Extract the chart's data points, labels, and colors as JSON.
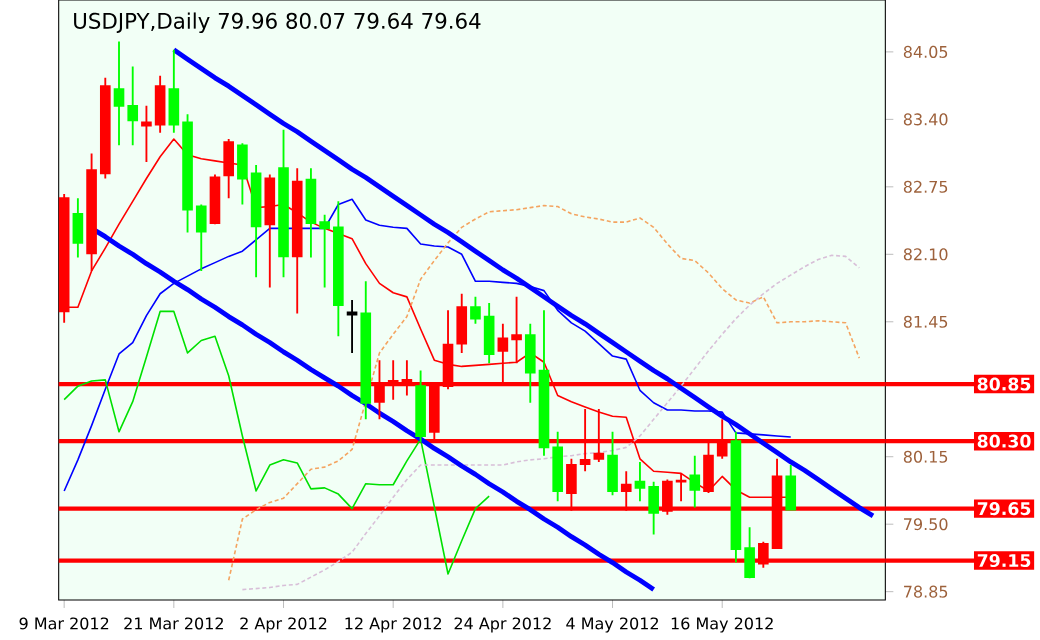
{
  "chart_data": {
    "type": "candlestick",
    "title": "USDJPY,Daily 79.96 80.07 79.64 79.64",
    "categories": [
      "9 Mar 2012",
      null,
      null,
      null,
      null,
      null,
      null,
      null,
      "21 Mar 2012",
      null,
      null,
      null,
      null,
      null,
      null,
      null,
      "2 Apr 2012",
      null,
      null,
      null,
      null,
      null,
      null,
      null,
      "12 Apr 2012",
      null,
      null,
      null,
      null,
      null,
      null,
      null,
      "24 Apr 2012",
      null,
      null,
      null,
      null,
      null,
      null,
      null,
      "4 May 2012",
      null,
      null,
      null,
      null,
      null,
      null,
      null,
      "16 May 2012",
      null,
      null,
      null,
      null,
      null,
      null,
      null,
      null,
      null,
      null,
      null
    ],
    "ohlc": [
      [
        81.55,
        82.68,
        81.44,
        82.64
      ],
      [
        82.49,
        82.64,
        82.07,
        82.21
      ],
      [
        82.11,
        83.07,
        81.94,
        82.91
      ],
      [
        82.88,
        83.8,
        82.83,
        83.72
      ],
      [
        83.69,
        84.15,
        83.15,
        83.53
      ],
      [
        83.53,
        83.91,
        83.15,
        83.39
      ],
      [
        83.34,
        83.53,
        82.99,
        83.37
      ],
      [
        83.35,
        83.82,
        83.27,
        83.72
      ],
      [
        83.69,
        84.07,
        83.27,
        83.35
      ],
      [
        83.37,
        83.45,
        82.31,
        82.53
      ],
      [
        82.56,
        82.58,
        81.94,
        82.32
      ],
      [
        82.4,
        82.87,
        82.39,
        82.84
      ],
      [
        82.86,
        83.21,
        82.64,
        83.18
      ],
      [
        83.15,
        83.17,
        82.58,
        82.83
      ],
      [
        82.88,
        82.96,
        81.88,
        82.37
      ],
      [
        82.39,
        82.87,
        81.78,
        82.83
      ],
      [
        82.93,
        83.3,
        81.88,
        82.08
      ],
      [
        82.08,
        82.93,
        81.53,
        82.8
      ],
      [
        82.82,
        82.93,
        82.07,
        82.4
      ],
      [
        82.41,
        82.48,
        81.78,
        82.35
      ],
      [
        82.36,
        82.61,
        81.31,
        81.61
      ],
      [
        81.54,
        81.66,
        81.15,
        81.52
      ],
      [
        81.53,
        81.84,
        80.51,
        80.67
      ],
      [
        80.68,
        81.08,
        80.51,
        80.85
      ],
      [
        80.86,
        81.08,
        80.7,
        80.88
      ],
      [
        80.85,
        81.08,
        80.74,
        80.89
      ],
      [
        80.83,
        80.98,
        80.29,
        80.35
      ],
      [
        80.39,
        80.86,
        80.32,
        80.85
      ],
      [
        80.83,
        81.56,
        80.8,
        81.23
      ],
      [
        81.24,
        81.72,
        81.15,
        81.59
      ],
      [
        81.59,
        81.69,
        81.43,
        81.48
      ],
      [
        81.5,
        81.63,
        81.05,
        81.14
      ],
      [
        81.17,
        81.43,
        80.86,
        81.29
      ],
      [
        81.28,
        81.69,
        81.05,
        81.32
      ],
      [
        81.32,
        81.43,
        80.67,
        80.96
      ],
      [
        80.98,
        81.56,
        80.16,
        80.24
      ],
      [
        80.24,
        80.39,
        79.72,
        79.82
      ],
      [
        79.8,
        80.13,
        79.63,
        80.07
      ],
      [
        80.08,
        80.61,
        80.01,
        80.12
      ],
      [
        80.13,
        80.61,
        80.1,
        80.18
      ],
      [
        80.16,
        80.39,
        79.78,
        79.82
      ],
      [
        79.82,
        80.01,
        79.63,
        79.88
      ],
      [
        79.91,
        80.1,
        79.72,
        79.85
      ],
      [
        79.86,
        79.91,
        79.4,
        79.61
      ],
      [
        79.63,
        79.93,
        79.59,
        79.91
      ],
      [
        79.91,
        79.99,
        79.72,
        79.92
      ],
      [
        79.97,
        80.16,
        79.66,
        79.83
      ],
      [
        79.82,
        80.29,
        79.8,
        80.16
      ],
      [
        80.16,
        80.51,
        80.13,
        80.29
      ],
      [
        80.3,
        80.39,
        79.13,
        79.26
      ],
      [
        79.27,
        79.47,
        78.98,
        78.99
      ],
      [
        79.12,
        79.33,
        79.08,
        79.31
      ],
      [
        79.27,
        80.13,
        79.26,
        79.96
      ],
      [
        79.96,
        80.07,
        79.64,
        79.64
      ],
      null,
      null,
      null,
      null,
      null,
      null
    ],
    "colors": [
      "#ff0000",
      "#00ff00",
      "#ff0000",
      "#ff0000",
      "#00ff00",
      "#00ff00",
      "#ff0000",
      "#ff0000",
      "#00ff00",
      "#00ff00",
      "#00ff00",
      "#ff0000",
      "#ff0000",
      "#00ff00",
      "#00ff00",
      "#ff0000",
      "#00ff00",
      "#ff0000",
      "#00ff00",
      "#00ff00",
      "#00ff00",
      "#000000",
      "#00ff00",
      "#ff0000",
      "#ff0000",
      "#ff0000",
      "#00ff00",
      "#ff0000",
      "#ff0000",
      "#ff0000",
      "#00ff00",
      "#00ff00",
      "#ff0000",
      "#ff0000",
      "#00ff00",
      "#00ff00",
      "#00ff00",
      "#ff0000",
      "#ff0000",
      "#ff0000",
      "#00ff00",
      "#ff0000",
      "#00ff00",
      "#00ff00",
      "#ff0000",
      "#ff0000",
      "#00ff00",
      "#ff0000",
      "#ff0000",
      "#00ff00",
      "#00ff00",
      "#ff0000",
      "#ff0000",
      "#00ff00",
      null,
      null,
      null,
      null,
      null,
      null
    ],
    "series": [
      {
        "type": "line",
        "color": "#ff0000",
        "line_style": "solid",
        "values": [
          81.59,
          81.59,
          81.94,
          82.16,
          82.39,
          82.61,
          82.83,
          83.04,
          83.21,
          83.06,
          83.02,
          83.0,
          82.98,
          82.96,
          82.55,
          82.56,
          82.58,
          82.5,
          82.41,
          82.35,
          82.3,
          82.25,
          82.01,
          81.82,
          81.73,
          81.69,
          81.38,
          81.08,
          81.04,
          81.02,
          81.03,
          81.04,
          81.05,
          81.06,
          81.15,
          81.06,
          80.74,
          80.68,
          80.63,
          80.58,
          80.54,
          80.53,
          80.13,
          80.01,
          80.0,
          79.99,
          79.9,
          79.82,
          79.96,
          79.83,
          79.76,
          79.76,
          79.76,
          79.76,
          null,
          null,
          null,
          null,
          null,
          null
        ]
      },
      {
        "type": "line",
        "color": "#0000ff",
        "line_style": "solid",
        "values": [
          79.82,
          80.12,
          80.45,
          80.8,
          81.14,
          81.25,
          81.51,
          81.72,
          81.82,
          81.89,
          81.96,
          82.02,
          82.08,
          82.13,
          82.24,
          82.35,
          82.35,
          82.35,
          82.35,
          82.35,
          82.58,
          82.63,
          82.43,
          82.38,
          82.36,
          82.35,
          82.2,
          82.18,
          82.17,
          82.1,
          81.84,
          81.84,
          81.83,
          81.82,
          81.79,
          81.75,
          81.56,
          81.44,
          81.36,
          81.24,
          81.12,
          81.09,
          80.79,
          80.67,
          80.6,
          80.6,
          80.59,
          80.59,
          80.58,
          80.38,
          80.37,
          80.36,
          80.35,
          80.34,
          null,
          null,
          null,
          null,
          null,
          null
        ]
      },
      {
        "type": "line",
        "color": "#00e000",
        "line_style": "solid",
        "values": [
          80.7,
          80.83,
          80.88,
          80.89,
          80.39,
          80.68,
          81.11,
          81.55,
          81.55,
          81.15,
          81.27,
          81.31,
          80.93,
          80.35,
          79.82,
          80.07,
          80.12,
          80.09,
          79.84,
          79.85,
          79.79,
          79.65,
          79.89,
          79.88,
          79.88,
          80.11,
          80.32,
          79.67,
          79.02,
          79.34,
          79.65,
          79.77,
          null,
          null,
          null,
          null,
          null,
          null,
          null,
          null,
          null,
          null,
          null,
          null,
          null,
          null,
          null,
          null,
          null,
          null,
          null,
          null,
          null,
          null,
          null,
          null,
          null,
          null,
          null,
          null
        ]
      },
      {
        "type": "line",
        "color": "#f4a460",
        "line_style": "dashed",
        "values": [
          null,
          null,
          null,
          null,
          null,
          null,
          null,
          null,
          null,
          null,
          null,
          null,
          78.96,
          79.55,
          79.64,
          79.71,
          79.75,
          79.89,
          80.03,
          80.05,
          80.11,
          80.22,
          null,
          81.15,
          81.33,
          81.5,
          81.86,
          82.04,
          82.21,
          82.36,
          82.44,
          82.51,
          82.52,
          82.53,
          82.55,
          82.57,
          82.56,
          82.49,
          82.46,
          82.44,
          82.41,
          82.41,
          82.45,
          82.36,
          82.2,
          82.06,
          82.04,
          81.92,
          81.77,
          81.66,
          81.63,
          81.69,
          81.44,
          81.45,
          81.45,
          81.46,
          81.45,
          81.44,
          81.1,
          null
        ]
      },
      {
        "type": "line",
        "color": "#d8bfd8",
        "line_style": "dashed",
        "values": [
          null,
          null,
          null,
          null,
          null,
          null,
          null,
          null,
          null,
          null,
          null,
          null,
          null,
          78.87,
          78.88,
          78.89,
          78.91,
          78.92,
          78.99,
          79.06,
          79.14,
          79.23,
          79.41,
          79.58,
          79.76,
          79.93,
          80.07,
          80.07,
          80.07,
          80.07,
          80.07,
          80.07,
          80.07,
          80.1,
          80.12,
          80.13,
          80.15,
          80.16,
          80.18,
          80.19,
          80.21,
          80.24,
          80.35,
          80.51,
          80.67,
          80.83,
          81.0,
          81.17,
          81.33,
          81.48,
          81.61,
          81.72,
          81.82,
          81.9,
          81.98,
          82.05,
          82.09,
          82.08,
          81.97,
          null
        ]
      },
      {
        "type": "line",
        "color": "#0000ff",
        "line_style": "solid",
        "values": [
          null,
          null,
          null,
          null,
          null,
          null,
          null,
          null,
          84.07,
          83.98,
          83.89,
          83.8,
          83.72,
          83.63,
          83.54,
          83.45,
          83.36,
          83.28,
          83.19,
          83.1,
          83.01,
          82.92,
          82.84,
          82.75,
          82.66,
          82.57,
          82.48,
          82.39,
          82.31,
          82.22,
          82.13,
          82.04,
          81.95,
          81.87,
          81.78,
          81.69,
          81.6,
          81.51,
          81.43,
          81.34,
          81.25,
          81.16,
          81.07,
          80.98,
          80.9,
          80.81,
          80.72,
          80.63,
          80.54,
          80.46,
          80.37,
          80.28,
          80.19,
          80.1,
          80.02,
          79.93,
          79.84,
          79.75,
          79.66,
          79.58
        ]
      },
      {
        "type": "line",
        "color": "#0000ff",
        "line_style": "solid",
        "values": [
          null,
          null,
          82.35,
          82.27,
          82.18,
          82.1,
          82.01,
          81.93,
          81.84,
          81.76,
          81.67,
          81.59,
          81.5,
          81.42,
          81.33,
          81.25,
          81.16,
          81.08,
          80.99,
          80.91,
          80.83,
          80.74,
          80.66,
          80.57,
          80.49,
          80.4,
          80.32,
          80.23,
          80.15,
          80.06,
          79.98,
          79.89,
          79.81,
          79.72,
          79.64,
          79.55,
          79.47,
          79.38,
          79.3,
          79.21,
          79.13,
          79.04,
          78.96,
          78.87,
          null,
          null,
          null,
          null,
          null,
          null,
          null,
          null,
          null,
          null,
          null,
          null,
          null,
          null,
          null,
          null
        ]
      }
    ],
    "ref_lines": [
      {
        "axis": "y",
        "value": 80.85,
        "label": "80.85",
        "color": "#ff0000"
      },
      {
        "axis": "y",
        "value": 80.3,
        "label": "80.30",
        "color": "#ff0000"
      },
      {
        "axis": "y",
        "value": 79.65,
        "label": "79.65",
        "color": "#ff0000"
      },
      {
        "axis": "y",
        "value": 79.15,
        "label": "79.15",
        "color": "#ff0000"
      }
    ],
    "ylim": [
      78.77,
      84.55
    ],
    "yticks": [
      84.05,
      {
        "value": 83.4,
        "label": "83.40"
      },
      82.75,
      {
        "value": 82.1,
        "label": "82.10"
      },
      81.45,
      80.15,
      {
        "value": 79.5,
        "label": "79.50"
      },
      78.85
    ],
    "grid": false,
    "marker": "none"
  }
}
